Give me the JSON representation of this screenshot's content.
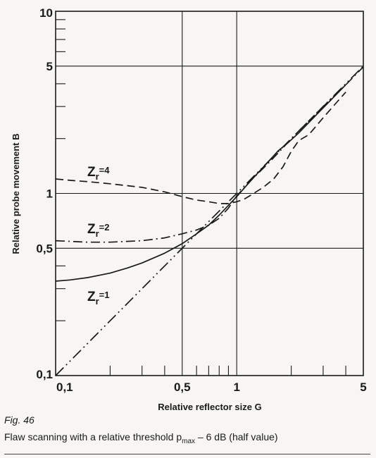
{
  "chart_data": {
    "type": "line",
    "xlabel": "Relative reflector size G",
    "ylabel": "Relative probe movement B",
    "x_scale": "log",
    "y_scale": "log",
    "xlim": [
      0.1,
      5
    ],
    "ylim": [
      0.1,
      10
    ],
    "x_tick_labels": [
      "0,1",
      "0,5",
      "1",
      "5"
    ],
    "y_tick_labels": [
      "0,1",
      "0,5",
      "1",
      "5",
      "10"
    ],
    "grid": true,
    "legend": "none",
    "annotations": [
      {
        "main": "Z",
        "sub": "r",
        "suffix": "=4",
        "series": "Zr=4"
      },
      {
        "main": "Z",
        "sub": "r",
        "suffix": "=2",
        "series": "Zr=2"
      },
      {
        "main": "Z",
        "sub": "r",
        "suffix": "=1",
        "series": "Zr=1"
      }
    ],
    "series": [
      {
        "style": "dashed",
        "x": [
          0.1,
          0.12,
          0.15,
          0.2,
          0.3,
          0.4,
          0.5,
          0.6,
          0.7,
          0.8,
          0.9,
          1.0,
          1.1,
          1.2,
          1.4,
          1.6,
          1.8,
          2.0,
          2.2,
          2.5,
          3.0,
          3.5,
          4.0
        ],
        "y": [
          1.2,
          1.18,
          1.16,
          1.13,
          1.08,
          1.02,
          0.96,
          0.92,
          0.9,
          0.88,
          0.88,
          0.9,
          0.93,
          0.98,
          1.08,
          1.2,
          1.4,
          1.7,
          1.95,
          2.1,
          2.6,
          3.1,
          3.6
        ]
      },
      {
        "style": "dash-dot",
        "x": [
          0.1,
          0.15,
          0.2,
          0.3,
          0.4,
          0.5,
          0.6,
          0.7,
          0.8,
          0.9,
          1.0,
          1.2,
          1.5,
          1.8,
          2.0,
          2.5,
          3.0,
          4.0,
          5.0
        ],
        "y": [
          0.55,
          0.54,
          0.54,
          0.55,
          0.57,
          0.6,
          0.63,
          0.67,
          0.73,
          0.83,
          0.97,
          1.18,
          1.47,
          1.78,
          2.0,
          2.5,
          3.0,
          3.95,
          4.95
        ]
      },
      {
        "style": "solid",
        "x": [
          0.1,
          0.12,
          0.15,
          0.2,
          0.25,
          0.3,
          0.4,
          0.5,
          0.6,
          0.7,
          0.8,
          0.9,
          1.0,
          1.2,
          1.5,
          1.7,
          1.9,
          2.2,
          2.6,
          3.0,
          3.5,
          4.0
        ],
        "y": [
          0.33,
          0.335,
          0.345,
          0.365,
          0.39,
          0.415,
          0.47,
          0.53,
          0.6,
          0.67,
          0.76,
          0.86,
          0.96,
          1.18,
          1.5,
          1.72,
          1.88,
          2.15,
          2.55,
          2.95,
          3.45,
          3.95
        ]
      },
      {
        "style": "dash-dot-dot",
        "x": [
          0.1,
          5.0
        ],
        "y": [
          0.1,
          5.0
        ]
      }
    ]
  },
  "caption": {
    "figure": "Fig. 46",
    "text_before": "Flaw scanning with a relative threshold p",
    "text_sub": "max",
    "text_after": " – 6 dB (half value)"
  }
}
